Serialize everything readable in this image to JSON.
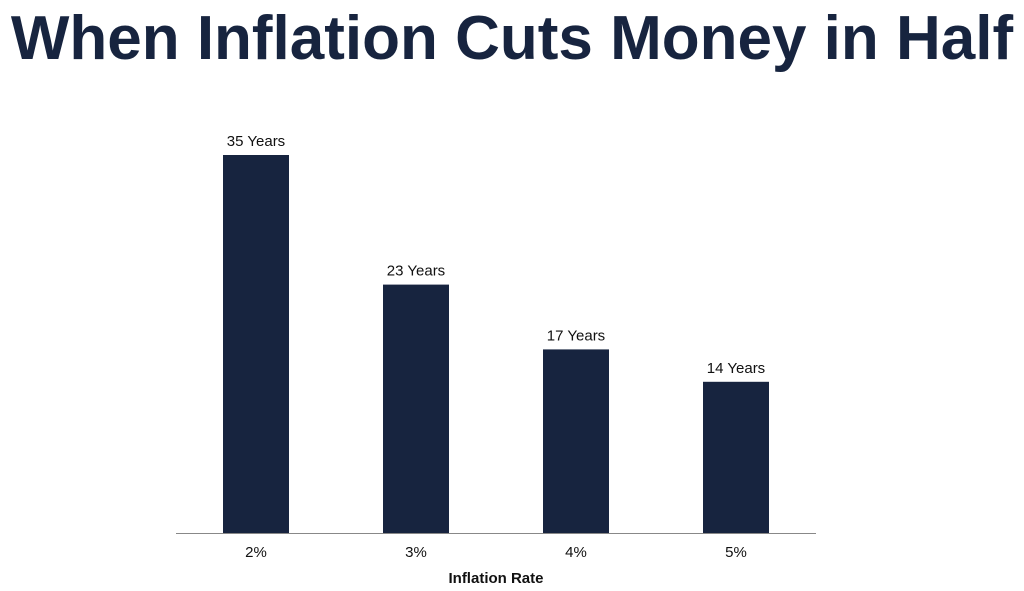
{
  "chart_data": {
    "type": "bar",
    "title": "When Inflation Cuts Money in Half",
    "xlabel": "Inflation Rate",
    "ylabel": "",
    "categories": [
      "2%",
      "3%",
      "4%",
      "5%"
    ],
    "values": [
      35,
      23,
      17,
      14
    ],
    "data_labels": [
      "35 Years",
      "23 Years",
      "17 Years",
      "14 Years"
    ],
    "ylim": [
      0,
      35
    ],
    "grid": false,
    "legend": "none",
    "bar_color": "#17243f"
  }
}
